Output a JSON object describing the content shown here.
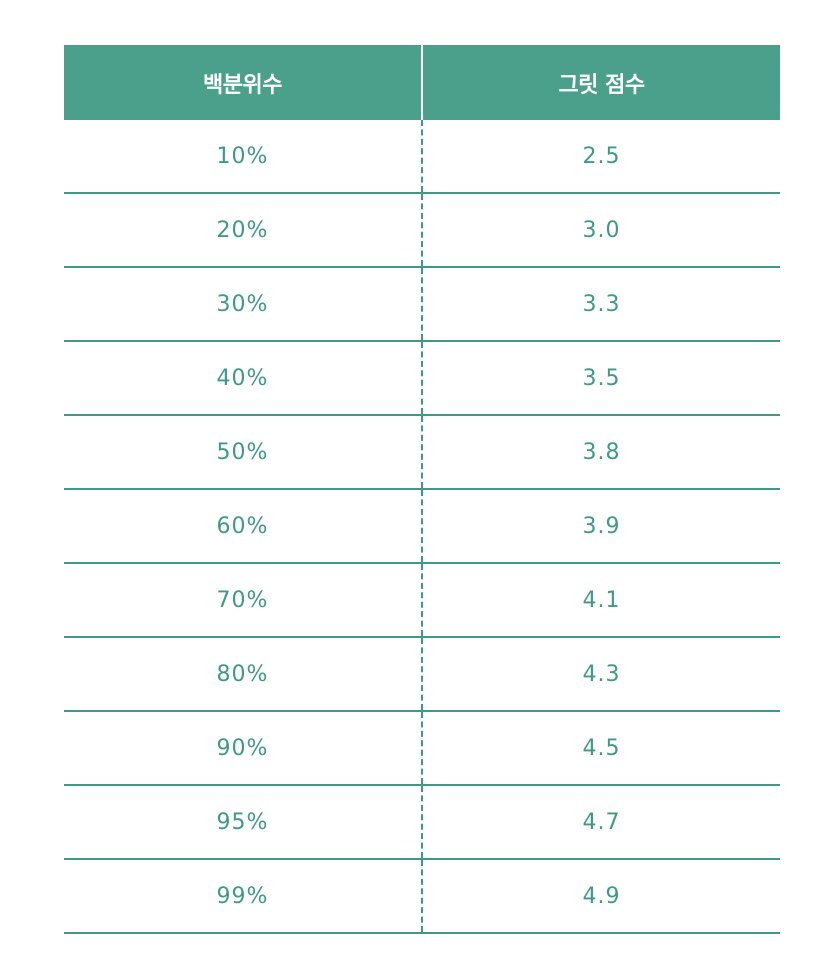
{
  "table": {
    "headers": [
      "백분위수",
      "그릿 점수"
    ],
    "rows": [
      [
        "10%",
        "2.5"
      ],
      [
        "20%",
        "3.0"
      ],
      [
        "30%",
        "3.3"
      ],
      [
        "40%",
        "3.5"
      ],
      [
        "50%",
        "3.8"
      ],
      [
        "60%",
        "3.9"
      ],
      [
        "70%",
        "4.1"
      ],
      [
        "80%",
        "4.3"
      ],
      [
        "90%",
        "4.5"
      ],
      [
        "95%",
        "4.7"
      ],
      [
        "99%",
        "4.9"
      ]
    ]
  },
  "colors": {
    "header_bg": "#4aa08a",
    "accent": "#3f9a85",
    "header_text": "#ffffff"
  }
}
